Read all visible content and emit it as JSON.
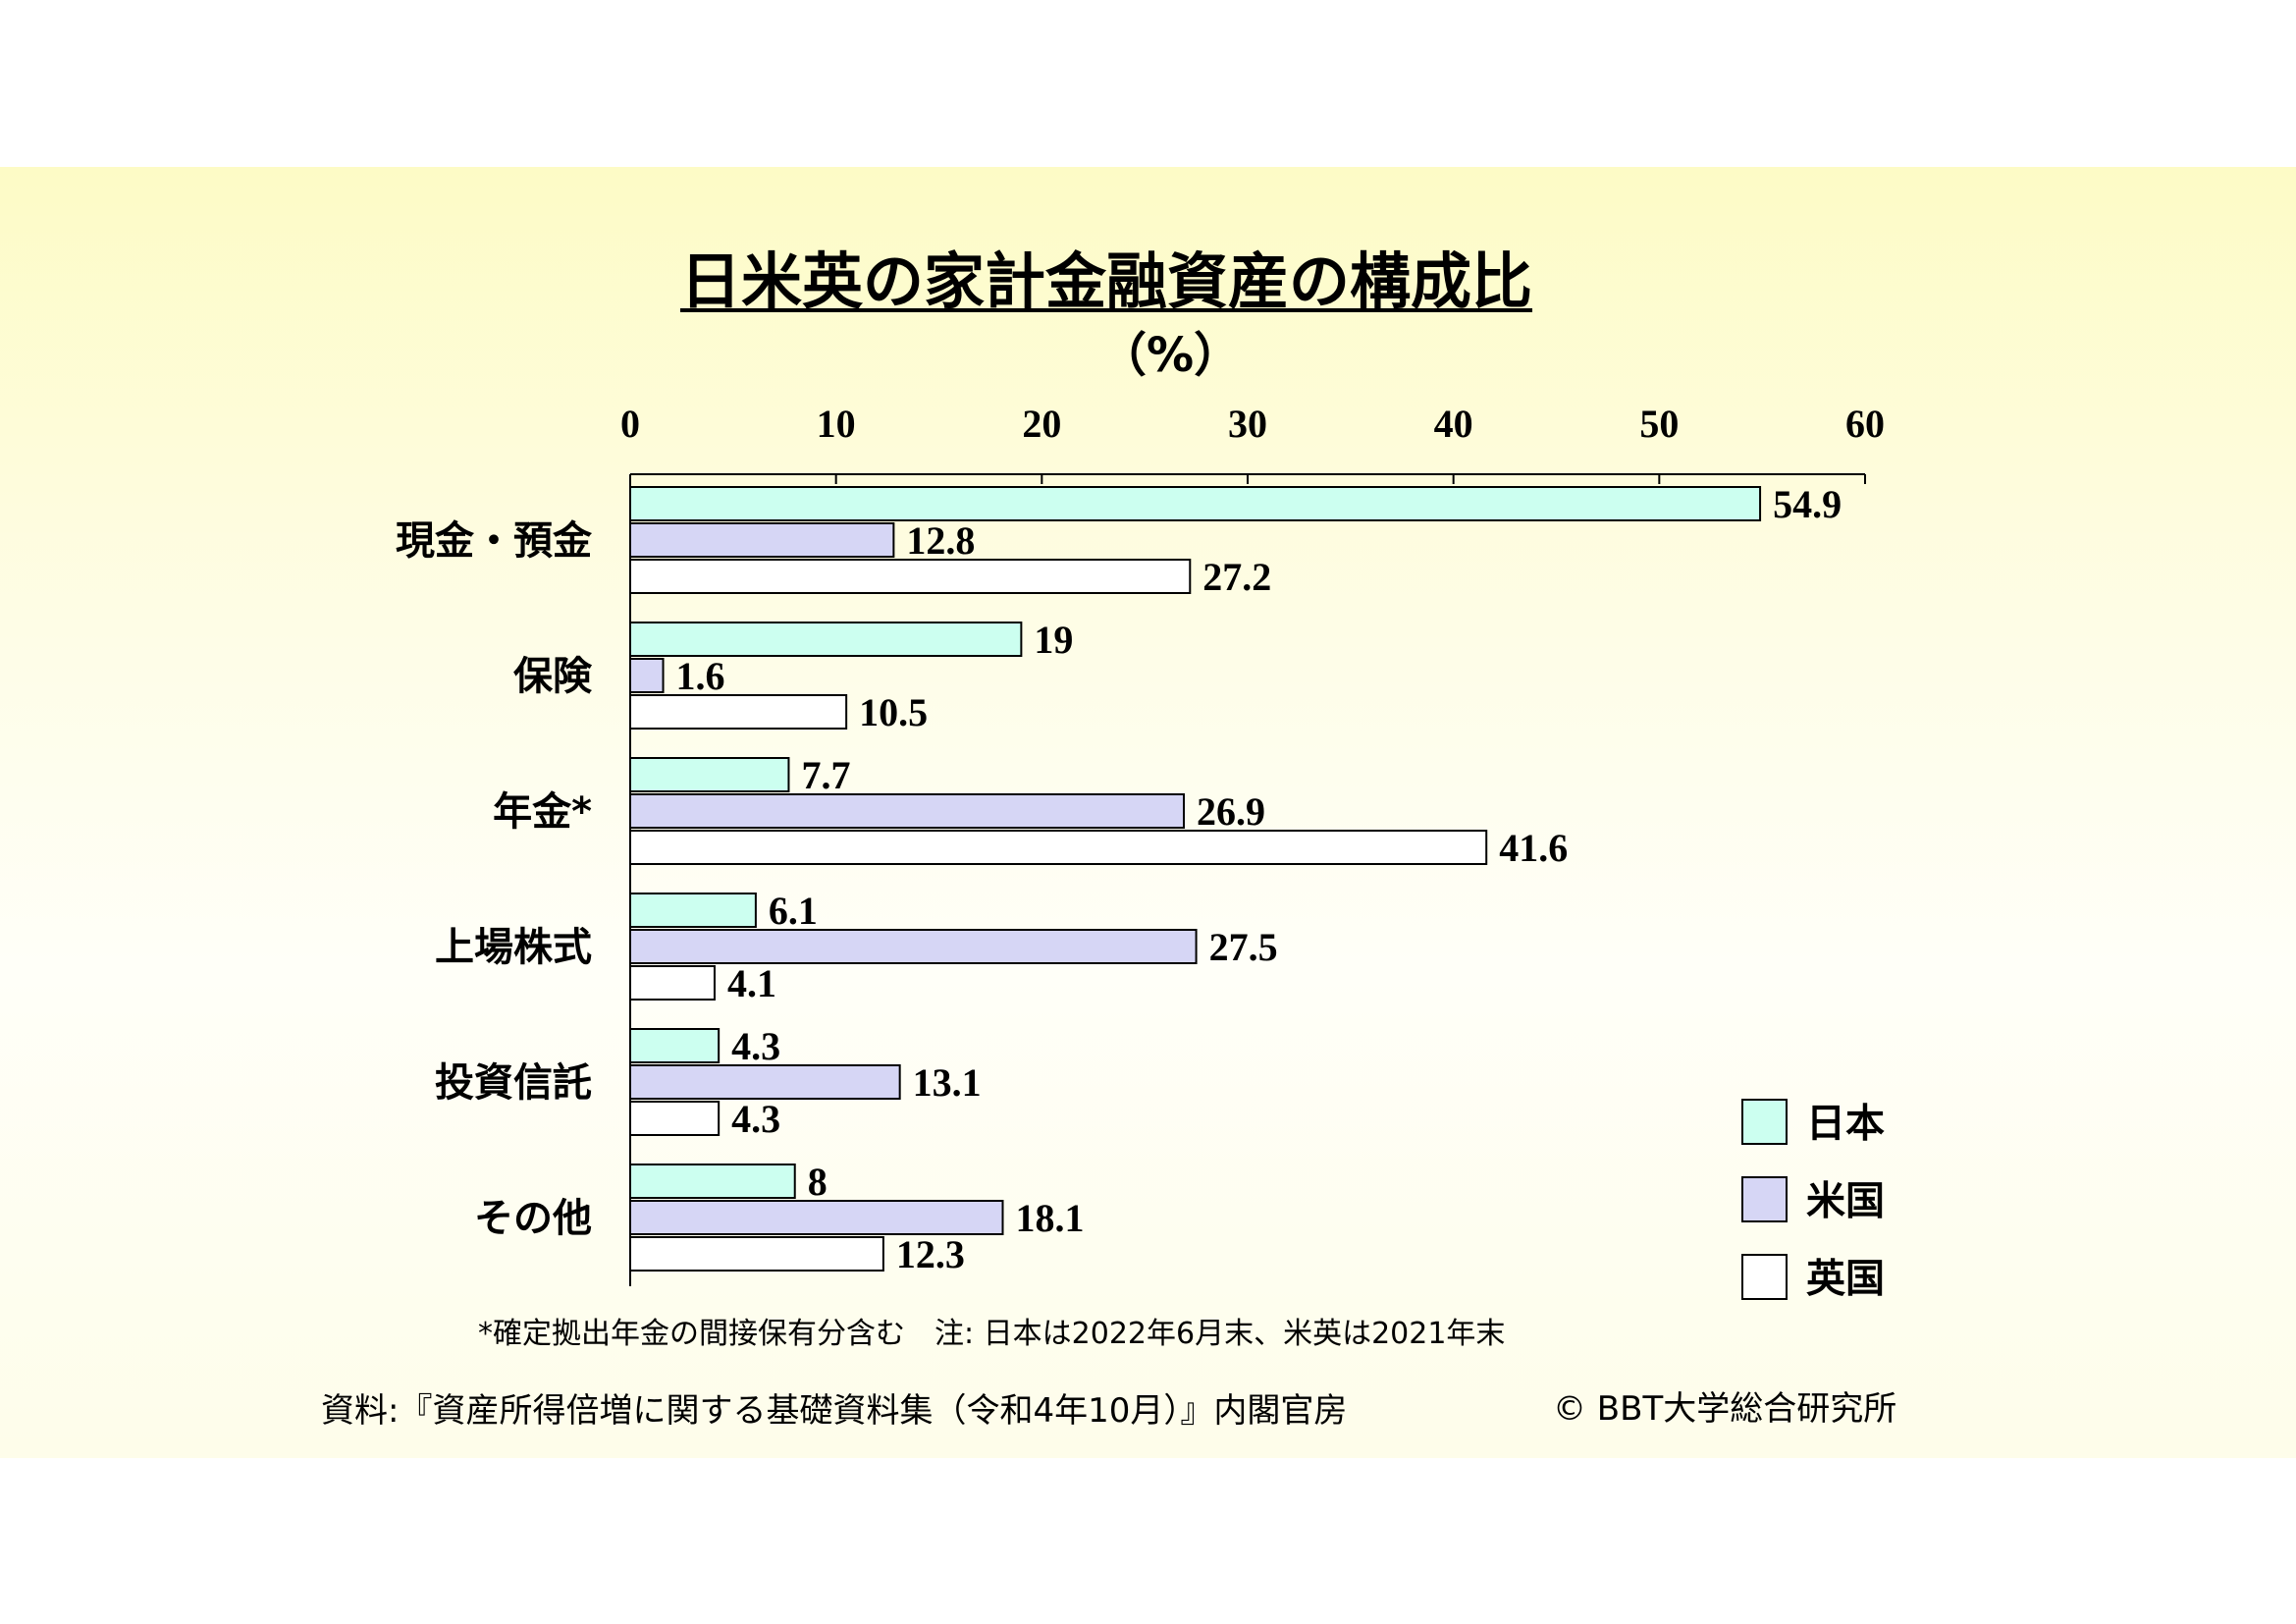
{
  "chart_data": {
    "type": "bar",
    "orientation": "horizontal",
    "title": "日米英の家計金融資産の構成比",
    "unit": "（%）",
    "categories": [
      "現金・預金",
      "保険",
      "年金*",
      "上場株式",
      "投資信託",
      "その他"
    ],
    "series": [
      {
        "name": "日本",
        "color": "#ccfff0",
        "values": [
          54.9,
          19,
          7.7,
          6.1,
          4.3,
          8
        ]
      },
      {
        "name": "米国",
        "color": "#d6d6f5",
        "values": [
          12.8,
          1.6,
          26.9,
          27.5,
          13.1,
          18.1
        ]
      },
      {
        "name": "英国",
        "color": "#ffffff",
        "values": [
          27.2,
          10.5,
          41.6,
          4.1,
          4.3,
          12.3
        ]
      }
    ],
    "xlim": [
      0,
      60
    ],
    "xticks": [
      "0",
      "10",
      "20",
      "30",
      "40",
      "50",
      "60"
    ],
    "axis_position": "top",
    "legend_position": "bottom-right",
    "grid": false
  },
  "footnote": "*確定拠出年金の間接保有分含む　注: 日本は2022年6月末、米英は2021年末",
  "source": "資料:『資産所得倍増に関する基礎資料集（令和4年10月）』内閣官房",
  "copyright": "© BBT大学総合研究所"
}
